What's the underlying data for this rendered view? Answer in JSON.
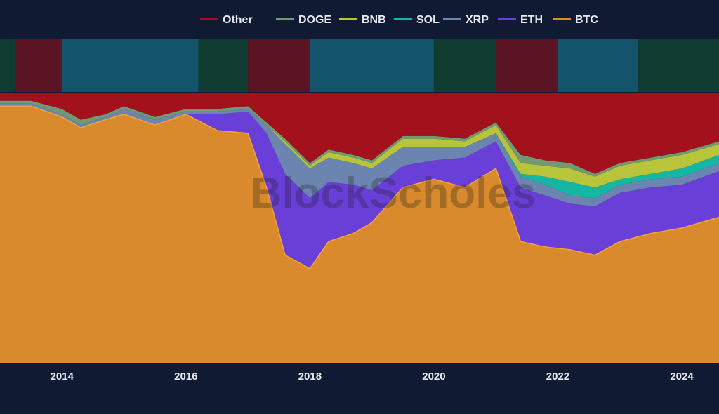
{
  "chart_data": {
    "type": "area",
    "stacked": true,
    "normalized": true,
    "x": [
      2013.0,
      2013.5,
      2014.0,
      2014.3,
      2014.7,
      2015.0,
      2015.5,
      2016.0,
      2016.5,
      2017.0,
      2017.3,
      2017.6,
      2018.0,
      2018.3,
      2018.7,
      2019.0,
      2019.5,
      2020.0,
      2020.5,
      2021.0,
      2021.4,
      2021.8,
      2022.2,
      2022.6,
      2023.0,
      2023.5,
      2024.0,
      2024.6
    ],
    "series": [
      {
        "name": "BTC",
        "color": "#d98a2c",
        "values": [
          95,
          95,
          91,
          87,
          90,
          92,
          88,
          92,
          86,
          85,
          65,
          40,
          35,
          45,
          48,
          52,
          65,
          68,
          65,
          72,
          45,
          43,
          42,
          40,
          45,
          48,
          50,
          54
        ]
      },
      {
        "name": "ETH",
        "color": "#6a3fd8",
        "values": [
          0,
          0,
          0,
          0,
          0,
          0,
          0,
          0,
          6,
          8,
          20,
          30,
          26,
          22,
          18,
          12,
          8,
          7,
          11,
          10,
          20,
          19,
          17,
          18,
          18,
          17,
          16,
          17
        ]
      },
      {
        "name": "XRP",
        "color": "#6b85b0",
        "values": [
          1,
          1,
          1,
          1,
          1,
          2,
          2,
          1,
          1,
          1,
          3,
          11,
          11,
          9,
          8,
          8,
          7,
          5,
          4,
          3,
          4,
          4,
          3,
          3,
          3,
          3,
          3,
          3
        ]
      },
      {
        "name": "SOL",
        "color": "#16b6a4",
        "values": [
          0,
          0,
          0,
          0,
          0,
          0,
          0,
          0,
          0,
          0,
          0,
          0,
          0,
          0,
          0,
          0,
          0,
          0,
          0,
          0,
          1,
          3,
          5,
          4,
          2,
          2,
          3,
          3
        ]
      },
      {
        "name": "BNB",
        "color": "#b8c43a",
        "values": [
          0,
          0,
          0,
          0,
          0,
          0,
          0,
          0,
          0,
          0,
          0,
          1,
          1,
          2,
          2,
          2,
          3,
          3,
          2,
          3,
          4,
          4,
          5,
          4,
          5,
          5,
          5,
          4
        ]
      },
      {
        "name": "DOGE",
        "color": "#6f9a73",
        "values": [
          1,
          1,
          2,
          2,
          1,
          1,
          1,
          1,
          1,
          1,
          1,
          1,
          1,
          1,
          1,
          1,
          1,
          1,
          1,
          1,
          3,
          2,
          2,
          1,
          1,
          1,
          1,
          1
        ]
      },
      {
        "name": "Other",
        "color": "#a3111d",
        "values": [
          3,
          3,
          6,
          10,
          8,
          5,
          9,
          6,
          6,
          5,
          11,
          17,
          26,
          21,
          23,
          25,
          16,
          16,
          17,
          11,
          23,
          25,
          26,
          30,
          26,
          24,
          22,
          18
        ]
      }
    ],
    "ylim": [
      0,
      100
    ],
    "xlim": [
      2013.0,
      2024.6
    ],
    "xticks": [
      "2014",
      "2016",
      "2018",
      "2020",
      "2022",
      "2024"
    ],
    "xtick_values": [
      2014,
      2016,
      2018,
      2020,
      2022,
      2024
    ],
    "legend_order": [
      "Other",
      "DOGE",
      "BNB",
      "SOL",
      "XRP",
      "ETH",
      "BTC"
    ],
    "legend_placement": "top-center",
    "grid": false,
    "band_row": [
      {
        "start": 2013.0,
        "end": 2013.25,
        "color": "#0f3b30"
      },
      {
        "start": 2013.25,
        "end": 2014.0,
        "color": "#5a1424"
      },
      {
        "start": 2014.0,
        "end": 2016.2,
        "color": "#13546a"
      },
      {
        "start": 2016.2,
        "end": 2017.0,
        "color": "#0f3b30"
      },
      {
        "start": 2017.0,
        "end": 2018.0,
        "color": "#5a1424"
      },
      {
        "start": 2018.0,
        "end": 2020.0,
        "color": "#13546a"
      },
      {
        "start": 2020.0,
        "end": 2021.0,
        "color": "#0f3b30"
      },
      {
        "start": 2021.0,
        "end": 2022.0,
        "color": "#5a1424"
      },
      {
        "start": 2022.0,
        "end": 2023.3,
        "color": "#13546a"
      },
      {
        "start": 2023.3,
        "end": 2024.6,
        "color": "#0f3b30"
      }
    ],
    "watermark": "BlockScholes"
  }
}
